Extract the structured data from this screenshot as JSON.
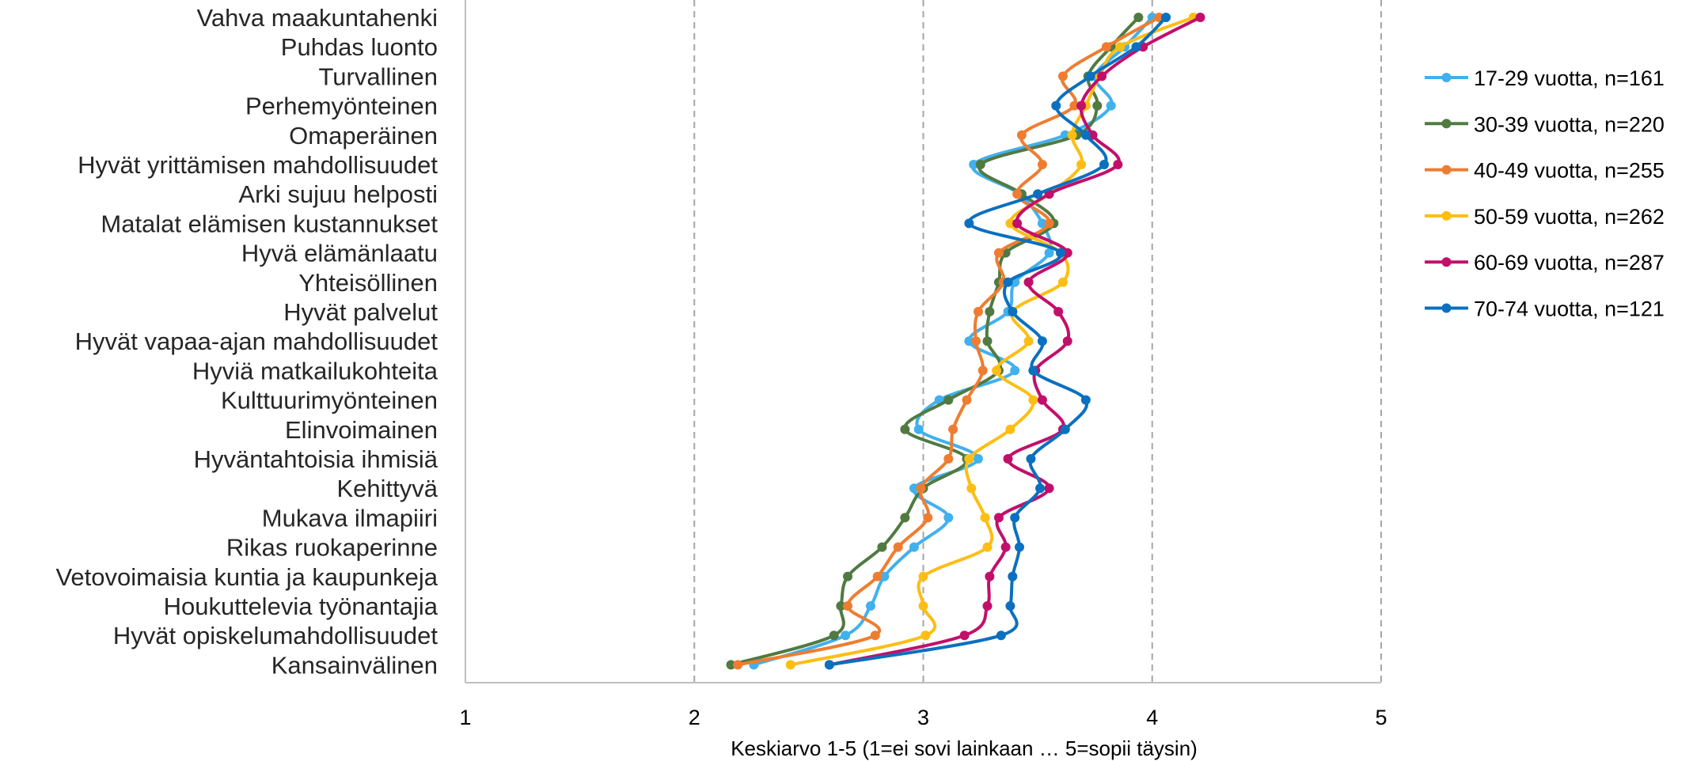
{
  "chart_data": {
    "type": "line",
    "orientation": "horizontal-categories",
    "xlabel": "Keskiarvo 1-5 (1=ei sovi lainkaan … 5=sopii täysin)",
    "xlim": [
      1,
      5
    ],
    "xticks": [
      "1",
      "2",
      "3",
      "4",
      "5"
    ],
    "grid": "vertical-dashed",
    "legend_position": "right",
    "categories": [
      "Vahva maakuntahenki",
      "Puhdas luonto",
      "Turvallinen",
      "Perhemyönteinen",
      "Omaperäinen",
      "Hyvät yrittämisen mahdollisuudet",
      "Arki sujuu helposti",
      "Matalat elämisen kustannukset",
      "Hyvä elämänlaatu",
      "Yhteisöllinen",
      "Hyvät palvelut",
      "Hyvät vapaa-ajan mahdollisuudet",
      "Hyviä matkailukohteita",
      "Kulttuurimyönteinen",
      "Elinvoimainen",
      "Hyväntahtoisia ihmisiä",
      "Kehittyvä",
      "Mukava ilmapiiri",
      "Rikas ruokaperinne",
      "Vetovoimaisia kuntia ja kaupunkeja",
      "Houkuttelevia työnantajia",
      "Hyvät opiskelumahdollisuudet",
      "Kansainvälinen"
    ],
    "series": [
      {
        "name": "17-29 vuotta, n=161",
        "color": "#41b0ee",
        "values": [
          4.0,
          3.88,
          3.75,
          3.82,
          3.62,
          3.22,
          3.42,
          3.52,
          3.55,
          3.4,
          3.37,
          3.2,
          3.4,
          3.07,
          2.98,
          3.24,
          2.96,
          3.11,
          2.96,
          2.83,
          2.77,
          2.66,
          2.26
        ]
      },
      {
        "name": "30-39 vuotta, n=220",
        "color": "#507a41",
        "values": [
          3.94,
          3.82,
          3.72,
          3.76,
          3.67,
          3.25,
          3.43,
          3.57,
          3.36,
          3.33,
          3.29,
          3.28,
          3.33,
          3.11,
          2.92,
          3.19,
          3.0,
          2.92,
          2.82,
          2.67,
          2.64,
          2.61,
          2.16
        ]
      },
      {
        "name": "40-49 vuotta, n=255",
        "color": "#ee7d31",
        "values": [
          4.03,
          3.8,
          3.61,
          3.66,
          3.43,
          3.52,
          3.41,
          3.55,
          3.33,
          3.35,
          3.24,
          3.23,
          3.26,
          3.19,
          3.13,
          3.11,
          2.99,
          3.02,
          2.89,
          2.8,
          2.67,
          2.79,
          2.19
        ]
      },
      {
        "name": "50-59 vuotta, n=262",
        "color": "#fdbe13",
        "values": [
          4.18,
          3.86,
          3.77,
          3.71,
          3.65,
          3.69,
          3.55,
          3.38,
          3.6,
          3.61,
          3.39,
          3.46,
          3.32,
          3.48,
          3.38,
          3.2,
          3.21,
          3.27,
          3.28,
          3.0,
          3.0,
          3.01,
          2.42
        ]
      },
      {
        "name": "60-69 vuotta, n=287",
        "color": "#c20f6b",
        "values": [
          4.21,
          3.96,
          3.78,
          3.69,
          3.74,
          3.85,
          3.55,
          3.41,
          3.63,
          3.46,
          3.59,
          3.63,
          3.49,
          3.52,
          3.61,
          3.37,
          3.55,
          3.33,
          3.36,
          3.29,
          3.28,
          3.18,
          2.59
        ]
      },
      {
        "name": "70-74 vuotta, n=121",
        "color": "#0a70bf",
        "values": [
          4.06,
          3.93,
          3.73,
          3.58,
          3.71,
          3.79,
          3.5,
          3.2,
          3.6,
          3.37,
          3.39,
          3.52,
          3.48,
          3.71,
          3.62,
          3.47,
          3.51,
          3.4,
          3.42,
          3.39,
          3.38,
          3.34,
          2.59
        ]
      }
    ]
  }
}
